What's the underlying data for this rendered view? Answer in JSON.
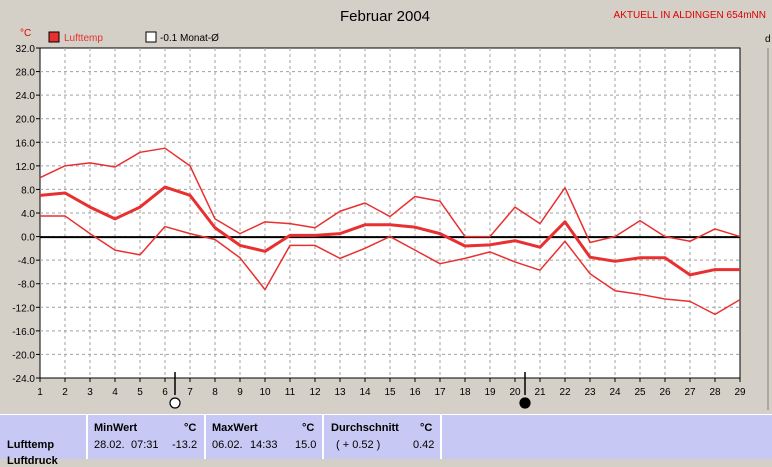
{
  "header": {
    "title": "Februar 2004",
    "station": "AKTUELL IN ALDINGEN 654mNN",
    "unit": "°C",
    "right_stub": "d"
  },
  "legend": [
    {
      "label": "Lufttemp",
      "color": "#e83030",
      "filled": true
    },
    {
      "label": "-0.1 Monat-Ø",
      "color": "#000000",
      "filled": false
    }
  ],
  "chart_data": {
    "type": "line",
    "title": "Februar 2004",
    "xlabel": "",
    "ylabel": "°C",
    "x": [
      1,
      2,
      3,
      4,
      5,
      6,
      7,
      8,
      9,
      10,
      11,
      12,
      13,
      14,
      15,
      16,
      17,
      18,
      19,
      20,
      21,
      22,
      23,
      24,
      25,
      26,
      27,
      28,
      29
    ],
    "xlim": [
      1,
      29
    ],
    "ylim": [
      -24,
      32
    ],
    "yticks": [
      32.0,
      28.0,
      24.0,
      20.0,
      16.0,
      12.0,
      8.0,
      4.0,
      0.0,
      -4.0,
      -8.0,
      -12.0,
      -16.0,
      -20.0,
      -24.0
    ],
    "ytick_labels": [
      "32.0",
      "28.0",
      "24.0",
      "20.0",
      "16.0",
      "12.0",
      "8.0",
      "4.0",
      "0.0",
      "-4.0",
      "-8.0",
      "-12.0",
      "-16.0",
      "-20.0",
      "-24.0"
    ],
    "grid": true,
    "moon_phases": [
      {
        "day": 6,
        "phase": "new"
      },
      {
        "day": 20,
        "phase": "full"
      }
    ],
    "reference_line": {
      "name": "-0.1 Monat-Ø",
      "value": -0.1
    },
    "series": [
      {
        "name": "Lufttemp max",
        "color": "#e83030",
        "width": 1.5,
        "values": [
          10.0,
          12.0,
          12.5,
          11.8,
          14.3,
          15.0,
          12.0,
          3.0,
          0.5,
          2.5,
          2.2,
          1.5,
          4.3,
          5.7,
          3.4,
          6.8,
          6.0,
          0.0,
          0.0,
          5.0,
          2.2,
          8.3,
          -1.0,
          0.0,
          2.7,
          0.0,
          -0.8,
          1.3,
          0.0
        ]
      },
      {
        "name": "Lufttemp mean",
        "color": "#e83030",
        "width": 3,
        "values": [
          7.0,
          7.4,
          5.0,
          3.0,
          5.0,
          8.4,
          7.0,
          1.5,
          -1.5,
          -2.5,
          0.2,
          0.2,
          0.5,
          2.0,
          2.0,
          1.6,
          0.5,
          -1.6,
          -1.4,
          -0.7,
          -1.8,
          2.5,
          -3.5,
          -4.2,
          -3.6,
          -3.6,
          -6.5,
          -5.6,
          -5.6
        ]
      },
      {
        "name": "Lufttemp min",
        "color": "#e83030",
        "width": 1.5,
        "values": [
          3.5,
          3.5,
          0.5,
          -2.3,
          -3.1,
          1.7,
          0.5,
          -0.5,
          -3.6,
          -9.0,
          -1.5,
          -1.5,
          -3.7,
          -2.0,
          0.0,
          -2.3,
          -4.6,
          -3.7,
          -2.6,
          -4.3,
          -5.7,
          -0.8,
          -6.3,
          -9.2,
          -9.8,
          -10.6,
          -11.0,
          -13.2,
          -10.7
        ]
      }
    ]
  },
  "stats": {
    "row_label": "Lufttemp",
    "row_label_next": "Luftdruck",
    "min": {
      "header": "MinWert",
      "unit": "°C",
      "date": "28.02.",
      "time": "07:31",
      "value": "-13.2"
    },
    "max": {
      "header": "MaxWert",
      "unit": "°C",
      "date": "06.02.",
      "time": "14:33",
      "value": "15.0"
    },
    "avg": {
      "header": "Durchschnitt",
      "unit": "°C",
      "delta": "( + 0.52 )",
      "value": "0.42"
    }
  }
}
